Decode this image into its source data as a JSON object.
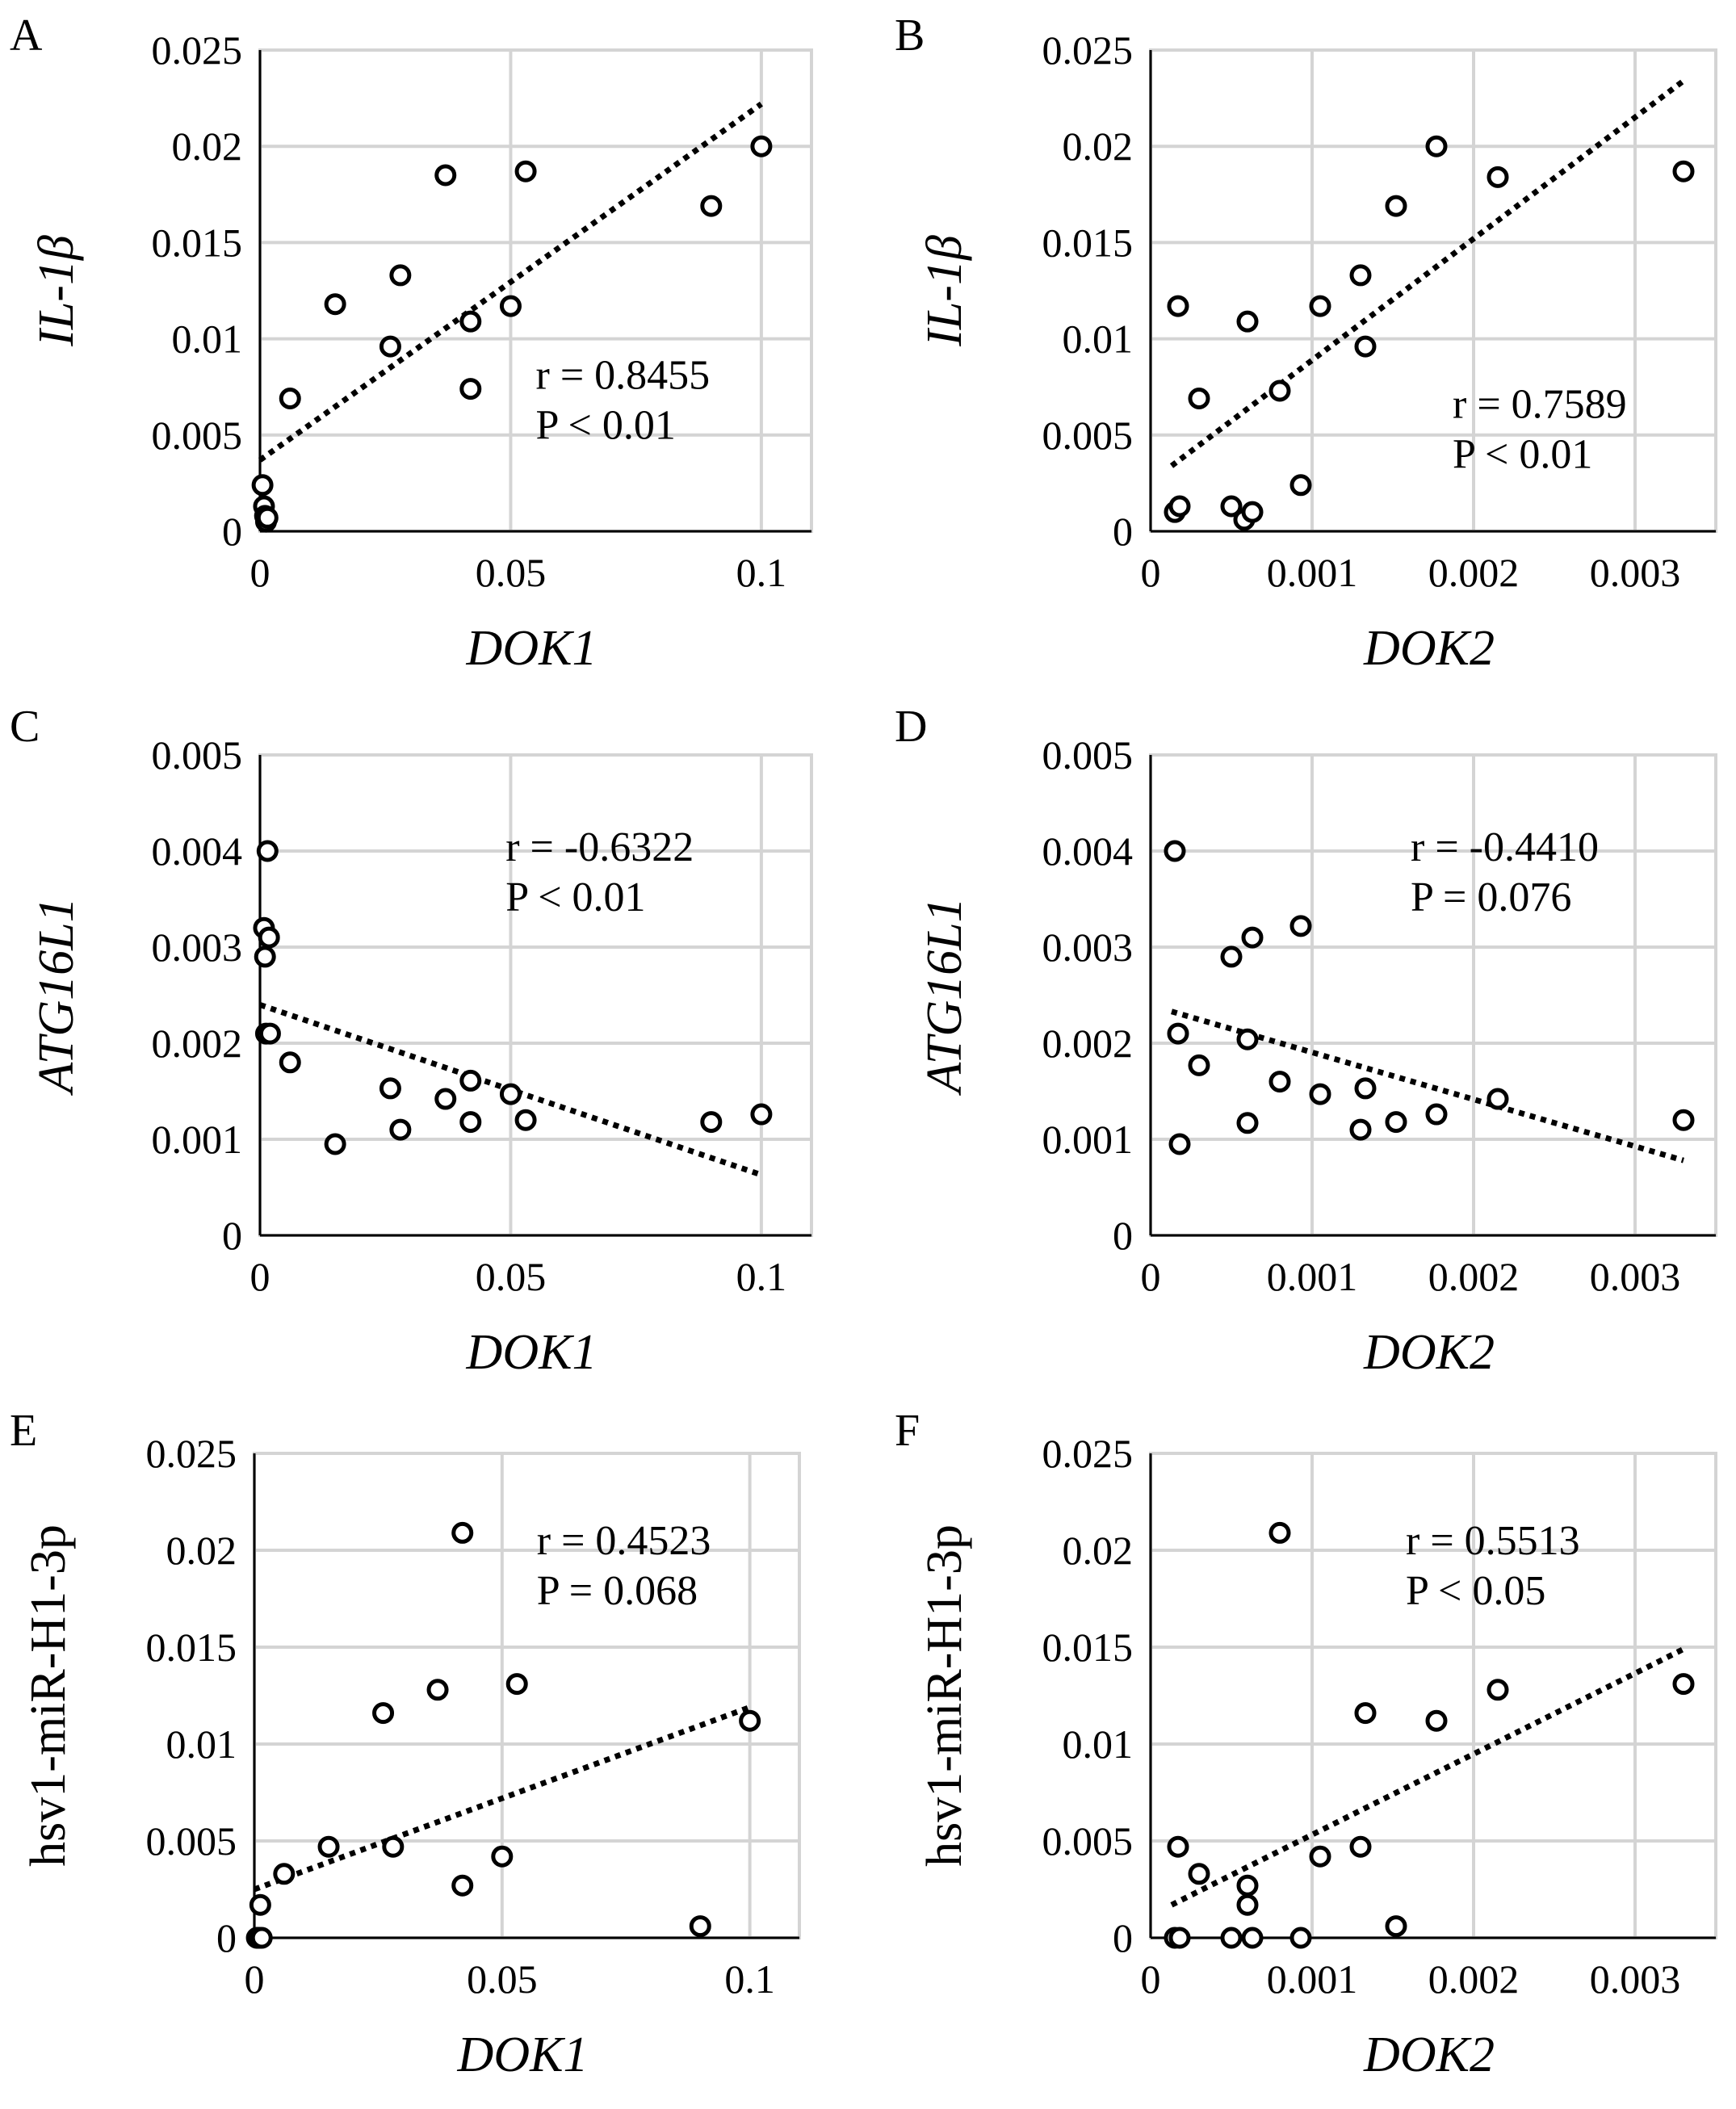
{
  "chart_data": [
    {
      "panel": "A",
      "type": "scatter",
      "xlabel": "DOK1",
      "ylabel": "IL-1β",
      "xlim": [
        0,
        0.11
      ],
      "ylim": [
        0,
        0.025
      ],
      "xticks": [
        0,
        0.05,
        0.1
      ],
      "xtick_labels": [
        "0",
        "0.05",
        "0.1"
      ],
      "yticks": [
        0,
        0.005,
        0.01,
        0.015,
        0.02,
        0.025
      ],
      "ytick_labels": [
        "0",
        "0.005",
        "0.01",
        "0.015",
        "0.02",
        "0.025"
      ],
      "stat_lines": [
        "r = 0.8455",
        "P < 0.01"
      ],
      "stat_anchor": [
        0.055,
        0.0074
      ],
      "trendline": [
        [
          0,
          0.0037
        ],
        [
          0.1,
          0.0222
        ]
      ],
      "points": [
        [
          0.0005,
          0.0024
        ],
        [
          0.0008,
          0.0013
        ],
        [
          0.001,
          0.0008
        ],
        [
          0.0012,
          0.0005
        ],
        [
          0.0015,
          0.0007
        ],
        [
          0.006,
          0.0069
        ],
        [
          0.015,
          0.0118
        ],
        [
          0.026,
          0.0096
        ],
        [
          0.028,
          0.0133
        ],
        [
          0.037,
          0.0185
        ],
        [
          0.042,
          0.0074
        ],
        [
          0.042,
          0.0109
        ],
        [
          0.05,
          0.0117
        ],
        [
          0.053,
          0.0187
        ],
        [
          0.09,
          0.0169
        ],
        [
          0.1,
          0.02
        ]
      ]
    },
    {
      "panel": "B",
      "type": "scatter",
      "xlabel": "DOK2",
      "ylabel": "IL-1β",
      "xlim": [
        0,
        0.0035
      ],
      "ylim": [
        0,
        0.025
      ],
      "xticks": [
        0,
        0.001,
        0.002,
        0.003
      ],
      "xtick_labels": [
        "0",
        "0.001",
        "0.002",
        "0.003"
      ],
      "yticks": [
        0,
        0.005,
        0.01,
        0.015,
        0.02,
        0.025
      ],
      "ytick_labels": [
        "0",
        "0.005",
        "0.01",
        "0.015",
        "0.02",
        "0.025"
      ],
      "stat_lines": [
        "r = 0.7589",
        "P < 0.01"
      ],
      "stat_anchor": [
        0.00187,
        0.0059
      ],
      "trendline": [
        [
          0.00013,
          0.0034
        ],
        [
          0.0033,
          0.0234
        ]
      ],
      "points": [
        [
          0.00015,
          0.001
        ],
        [
          0.00017,
          0.0117
        ],
        [
          0.00018,
          0.0013
        ],
        [
          0.0003,
          0.0069
        ],
        [
          0.0005,
          0.0013
        ],
        [
          0.00058,
          0.0006
        ],
        [
          0.0006,
          0.0109
        ],
        [
          0.00063,
          0.001
        ],
        [
          0.0008,
          0.0073
        ],
        [
          0.00093,
          0.0024
        ],
        [
          0.00105,
          0.0117
        ],
        [
          0.0013,
          0.0133
        ],
        [
          0.00133,
          0.0096
        ],
        [
          0.00152,
          0.0169
        ],
        [
          0.00177,
          0.02
        ],
        [
          0.00215,
          0.0184
        ],
        [
          0.0033,
          0.0187
        ]
      ]
    },
    {
      "panel": "C",
      "type": "scatter",
      "xlabel": "DOK1",
      "ylabel": "ATG16L1",
      "xlim": [
        0,
        0.11
      ],
      "ylim": [
        0,
        0.005
      ],
      "xticks": [
        0,
        0.05,
        0.1
      ],
      "xtick_labels": [
        "0",
        "0.05",
        "0.1"
      ],
      "yticks": [
        0,
        0.001,
        0.002,
        0.003,
        0.004,
        0.005
      ],
      "ytick_labels": [
        "0",
        "0.001",
        "0.002",
        "0.003",
        "0.004",
        "0.005"
      ],
      "stat_lines": [
        "r = -0.6322",
        "P < 0.01"
      ],
      "stat_anchor": [
        0.049,
        0.0039
      ],
      "trendline": [
        [
          0,
          0.0024
        ],
        [
          0.1,
          0.00063
        ]
      ],
      "points": [
        [
          0.0008,
          0.0032
        ],
        [
          0.001,
          0.0029
        ],
        [
          0.0012,
          0.0021
        ],
        [
          0.0015,
          0.004
        ],
        [
          0.0018,
          0.0031
        ],
        [
          0.002,
          0.0021
        ],
        [
          0.006,
          0.0018
        ],
        [
          0.015,
          0.00095
        ],
        [
          0.026,
          0.00153
        ],
        [
          0.028,
          0.0011
        ],
        [
          0.037,
          0.00142
        ],
        [
          0.042,
          0.00118
        ],
        [
          0.042,
          0.00161
        ],
        [
          0.05,
          0.00147
        ],
        [
          0.053,
          0.0012
        ],
        [
          0.09,
          0.00118
        ],
        [
          0.1,
          0.00126
        ]
      ]
    },
    {
      "panel": "D",
      "type": "scatter",
      "xlabel": "DOK2",
      "ylabel": "ATG16L1",
      "xlim": [
        0,
        0.0035
      ],
      "ylim": [
        0,
        0.005
      ],
      "xticks": [
        0,
        0.001,
        0.002,
        0.003
      ],
      "xtick_labels": [
        "0",
        "0.001",
        "0.002",
        "0.003"
      ],
      "stat_lines": [
        "r = -0.4410",
        "P = 0.076"
      ],
      "stat_anchor": [
        0.00161,
        0.0039
      ],
      "yticks": [
        0,
        0.001,
        0.002,
        0.003,
        0.004,
        0.005
      ],
      "ytick_labels": [
        "0",
        "0.001",
        "0.002",
        "0.003",
        "0.004",
        "0.005"
      ],
      "trendline": [
        [
          0.00013,
          0.00233
        ],
        [
          0.0033,
          0.00078
        ]
      ],
      "points": [
        [
          0.00015,
          0.004
        ],
        [
          0.00017,
          0.0021
        ],
        [
          0.00018,
          0.00095
        ],
        [
          0.0003,
          0.00177
        ],
        [
          0.0005,
          0.0029
        ],
        [
          0.0006,
          0.00204
        ],
        [
          0.00063,
          0.0031
        ],
        [
          0.0006,
          0.00117
        ],
        [
          0.0008,
          0.0016
        ],
        [
          0.00093,
          0.00322
        ],
        [
          0.00105,
          0.00147
        ],
        [
          0.0013,
          0.0011
        ],
        [
          0.00133,
          0.00153
        ],
        [
          0.00152,
          0.00118
        ],
        [
          0.00177,
          0.00126
        ],
        [
          0.00215,
          0.00142
        ],
        [
          0.0033,
          0.0012
        ]
      ]
    },
    {
      "panel": "E",
      "type": "scatter",
      "xlabel": "DOK1",
      "ylabel": "hsv1-miR-H1-3p",
      "xlim": [
        0,
        0.11
      ],
      "ylim": [
        0,
        0.025
      ],
      "xticks": [
        0,
        0.05,
        0.1
      ],
      "xtick_labels": [
        "0",
        "0.05",
        "0.1"
      ],
      "yticks": [
        0,
        0.005,
        0.01,
        0.015,
        0.02,
        0.025
      ],
      "ytick_labels": [
        "0",
        "0.005",
        "0.01",
        "0.015",
        "0.02",
        "0.025"
      ],
      "stat_lines": [
        "r = 0.4523",
        "P = 0.068"
      ],
      "stat_anchor": [
        0.057,
        0.0198
      ],
      "trendline": [
        [
          0,
          0.0025
        ],
        [
          0.1,
          0.0119
        ]
      ],
      "points": [
        [
          0.0005,
          0.0
        ],
        [
          0.0008,
          0.0
        ],
        [
          0.001,
          0.0
        ],
        [
          0.0012,
          0.0017
        ],
        [
          0.0015,
          0.0
        ],
        [
          0.006,
          0.0033
        ],
        [
          0.015,
          0.0047
        ],
        [
          0.026,
          0.0116
        ],
        [
          0.028,
          0.0047
        ],
        [
          0.037,
          0.0128
        ],
        [
          0.042,
          0.0209
        ],
        [
          0.042,
          0.0027
        ],
        [
          0.05,
          0.0042
        ],
        [
          0.053,
          0.0131
        ],
        [
          0.09,
          0.0006
        ],
        [
          0.1,
          0.0112
        ]
      ]
    },
    {
      "panel": "F",
      "type": "scatter",
      "xlabel": "DOK2",
      "ylabel": "hsv1-miR-H1-3p",
      "xlim": [
        0,
        0.0035
      ],
      "ylim": [
        0,
        0.025
      ],
      "xticks": [
        0,
        0.001,
        0.002,
        0.003
      ],
      "xtick_labels": [
        "0",
        "0.001",
        "0.002",
        "0.003"
      ],
      "yticks": [
        0,
        0.005,
        0.01,
        0.015,
        0.02,
        0.025
      ],
      "ytick_labels": [
        "0",
        "0.005",
        "0.01",
        "0.015",
        "0.02",
        "0.025"
      ],
      "stat_lines": [
        "r = 0.5513",
        "P < 0.05"
      ],
      "stat_anchor": [
        0.00158,
        0.0198
      ],
      "trendline": [
        [
          0.00013,
          0.0017
        ],
        [
          0.0033,
          0.0149
        ]
      ],
      "points": [
        [
          0.00015,
          0.0
        ],
        [
          0.00017,
          0.0047
        ],
        [
          0.00018,
          0.0
        ],
        [
          0.0003,
          0.0033
        ],
        [
          0.0005,
          0.0
        ],
        [
          0.0006,
          0.0027
        ],
        [
          0.0006,
          0.0017
        ],
        [
          0.00063,
          0.0
        ],
        [
          0.0008,
          0.0209
        ],
        [
          0.00093,
          0.0
        ],
        [
          0.00105,
          0.0042
        ],
        [
          0.0013,
          0.0047
        ],
        [
          0.00133,
          0.0116
        ],
        [
          0.00152,
          0.0006
        ],
        [
          0.00177,
          0.0112
        ],
        [
          0.00215,
          0.0128
        ],
        [
          0.0033,
          0.0131
        ]
      ]
    }
  ]
}
